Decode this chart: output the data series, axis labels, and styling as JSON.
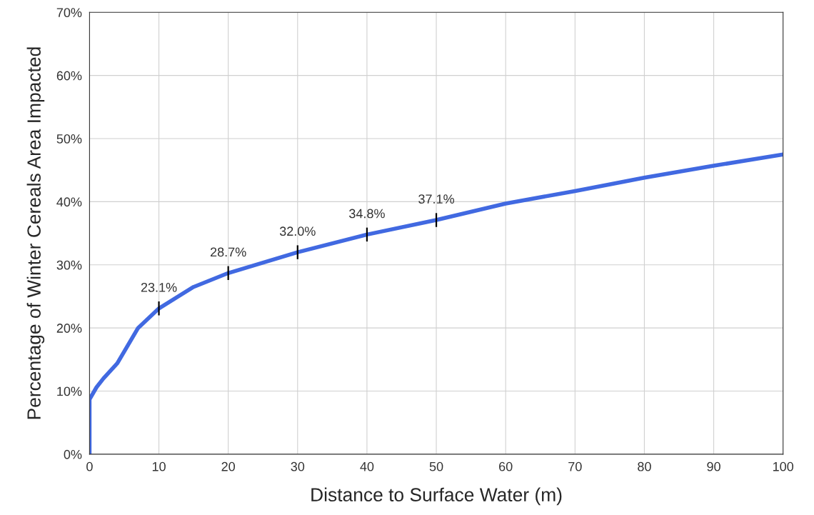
{
  "chart_data": {
    "type": "line",
    "xlabel": "Distance to Surface Water (m)",
    "ylabel": "Percentage of Winter Cereals Area Impacted",
    "series": [
      {
        "color": "#4169e1",
        "x": [
          0,
          0,
          1,
          2,
          4,
          7,
          10,
          15,
          20,
          30,
          40,
          50,
          60,
          70,
          80,
          90,
          100
        ],
        "values": [
          0,
          8.7,
          10.6,
          12.0,
          14.4,
          20.0,
          23.1,
          26.5,
          28.7,
          32.0,
          34.8,
          37.1,
          39.7,
          41.7,
          43.8,
          45.7,
          47.5
        ]
      }
    ],
    "annotations": [
      {
        "text": "23.1%",
        "x": 10,
        "y": 23.1
      },
      {
        "text": "28.7%",
        "x": 20,
        "y": 28.7
      },
      {
        "text": "32.0%",
        "x": 30,
        "y": 32.0
      },
      {
        "text": "34.8%",
        "x": 40,
        "y": 34.8
      },
      {
        "text": "37.1%",
        "x": 50,
        "y": 37.1
      }
    ],
    "xlim": [
      0,
      100
    ],
    "xticks": [
      0,
      10,
      20,
      30,
      40,
      50,
      60,
      70,
      80,
      90,
      100
    ],
    "ylim": [
      0,
      70
    ],
    "yticks": [
      {
        "value": 0,
        "label": "0%"
      },
      {
        "value": 10,
        "label": "10%"
      },
      {
        "value": 20,
        "label": "20%"
      },
      {
        "value": 30,
        "label": "30%"
      },
      {
        "value": 40,
        "label": "40%"
      },
      {
        "value": 50,
        "label": "50%"
      },
      {
        "value": 60,
        "label": "60%"
      },
      {
        "value": 70,
        "label": "70%"
      }
    ],
    "grid": true,
    "legend": false,
    "marker": "none",
    "line_style": "solid"
  }
}
